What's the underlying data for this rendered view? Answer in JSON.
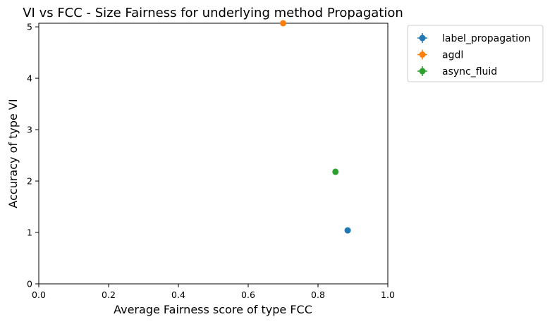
{
  "chart_data": {
    "type": "scatter",
    "title": "VI vs FCC - Size Fairness for underlying method Propagation",
    "xlabel": "Average Fairness score of type FCC",
    "ylabel": "Accuracy of type VI",
    "xlim": [
      0,
      1.0
    ],
    "ylim": [
      0,
      5.07
    ],
    "xticks": [
      "0.0",
      "0.2",
      "0.4",
      "0.6",
      "0.8",
      "1.0"
    ],
    "yticks": [
      "0",
      "1",
      "2",
      "3",
      "4",
      "5"
    ],
    "grid": false,
    "legend_position": "outside-top-right",
    "series": [
      {
        "name": "label_propagation",
        "color": "#1f77b4",
        "x": 0.885,
        "y": 1.04
      },
      {
        "name": "agdl",
        "color": "#ff7f0e",
        "x": 0.7,
        "y": 5.07
      },
      {
        "name": "async_fluid",
        "color": "#2ca02c",
        "x": 0.85,
        "y": 2.18
      }
    ]
  }
}
